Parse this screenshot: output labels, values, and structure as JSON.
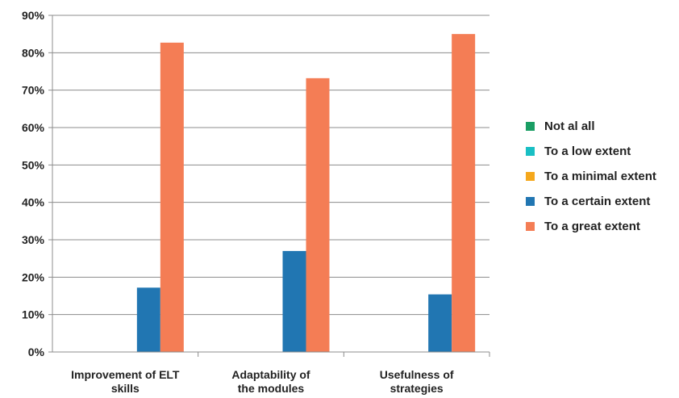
{
  "chart_data": {
    "type": "bar",
    "categories": [
      [
        "Improvement of ELT",
        "skills"
      ],
      [
        "Adaptability of",
        "the modules"
      ],
      [
        "Usefulness of",
        "strategies"
      ]
    ],
    "series": [
      {
        "name": "Not al all",
        "color": "#1a9e64",
        "values": [
          0,
          0,
          0
        ]
      },
      {
        "name": "To a low extent",
        "color": "#19bfc4",
        "values": [
          0,
          0,
          0
        ]
      },
      {
        "name": "To a minimal extent",
        "color": "#f5a81c",
        "values": [
          0,
          0,
          0
        ]
      },
      {
        "name": "To a certain extent",
        "color": "#2176b2",
        "values": [
          17.2,
          27.0,
          15.4
        ]
      },
      {
        "name": "To a great extent",
        "color": "#f47d55",
        "values": [
          82.7,
          73.2,
          85.0
        ]
      }
    ],
    "y_ticks": [
      "0%",
      "10%",
      "20%",
      "30%",
      "40%",
      "50%",
      "60%",
      "70%",
      "80%",
      "90%"
    ],
    "ylim": [
      0,
      90
    ],
    "grid": true,
    "legend_position": "right"
  }
}
